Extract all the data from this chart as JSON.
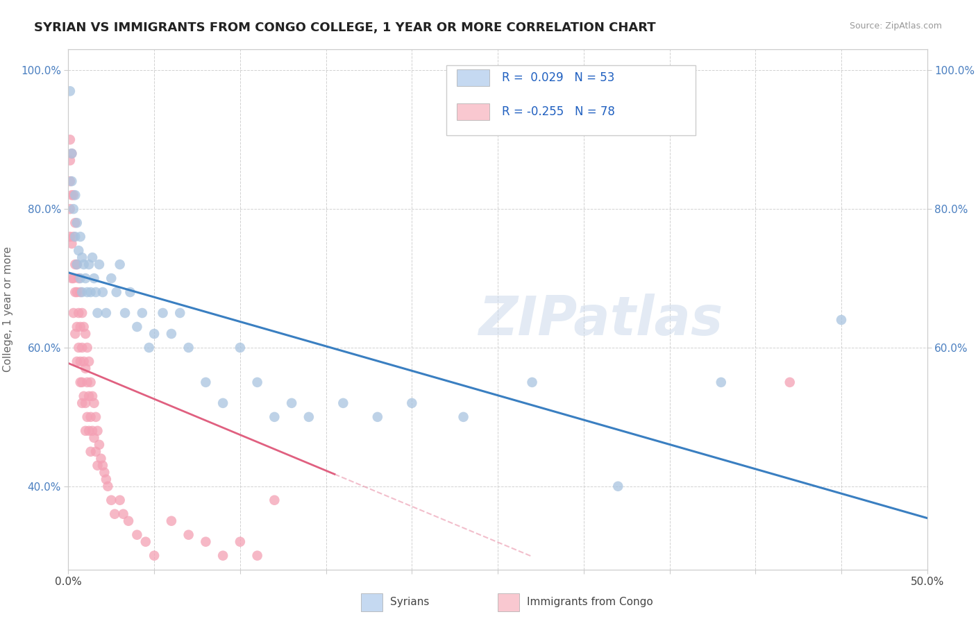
{
  "title": "SYRIAN VS IMMIGRANTS FROM CONGO COLLEGE, 1 YEAR OR MORE CORRELATION CHART",
  "source": "Source: ZipAtlas.com",
  "ylabel": "College, 1 year or more",
  "xmin": 0.0,
  "xmax": 0.5,
  "ymin": 0.28,
  "ymax": 1.03,
  "r_syrian": 0.029,
  "n_syrian": 53,
  "r_congo": -0.255,
  "n_congo": 78,
  "syrian_color": "#a8c4e0",
  "congo_color": "#f4a0b4",
  "syrian_line_color": "#3a7fc1",
  "congo_line_color": "#e06080",
  "legend_box_color_syrian": "#c5d9f1",
  "legend_box_color_congo": "#f9c8d0",
  "legend_text_color": "#2060c0",
  "watermark": "ZIPatlas",
  "background_color": "#ffffff",
  "grid_color": "#cccccc",
  "syrian_scatter_x": [
    0.001,
    0.002,
    0.002,
    0.003,
    0.004,
    0.004,
    0.005,
    0.005,
    0.006,
    0.007,
    0.007,
    0.008,
    0.008,
    0.009,
    0.01,
    0.011,
    0.012,
    0.013,
    0.014,
    0.015,
    0.016,
    0.017,
    0.018,
    0.02,
    0.022,
    0.025,
    0.028,
    0.03,
    0.033,
    0.036,
    0.04,
    0.043,
    0.047,
    0.05,
    0.055,
    0.06,
    0.065,
    0.07,
    0.08,
    0.09,
    0.1,
    0.11,
    0.12,
    0.13,
    0.14,
    0.16,
    0.18,
    0.2,
    0.23,
    0.27,
    0.32,
    0.38,
    0.45
  ],
  "syrian_scatter_y": [
    0.97,
    0.88,
    0.84,
    0.8,
    0.82,
    0.76,
    0.72,
    0.78,
    0.74,
    0.76,
    0.7,
    0.73,
    0.68,
    0.72,
    0.7,
    0.68,
    0.72,
    0.68,
    0.73,
    0.7,
    0.68,
    0.65,
    0.72,
    0.68,
    0.65,
    0.7,
    0.68,
    0.72,
    0.65,
    0.68,
    0.63,
    0.65,
    0.6,
    0.62,
    0.65,
    0.62,
    0.65,
    0.6,
    0.55,
    0.52,
    0.6,
    0.55,
    0.5,
    0.52,
    0.5,
    0.52,
    0.5,
    0.52,
    0.5,
    0.55,
    0.4,
    0.55,
    0.64
  ],
  "congo_scatter_x": [
    0.001,
    0.001,
    0.001,
    0.001,
    0.001,
    0.002,
    0.002,
    0.002,
    0.002,
    0.003,
    0.003,
    0.003,
    0.003,
    0.004,
    0.004,
    0.004,
    0.004,
    0.005,
    0.005,
    0.005,
    0.005,
    0.006,
    0.006,
    0.006,
    0.007,
    0.007,
    0.007,
    0.007,
    0.008,
    0.008,
    0.008,
    0.008,
    0.009,
    0.009,
    0.009,
    0.01,
    0.01,
    0.01,
    0.01,
    0.011,
    0.011,
    0.011,
    0.012,
    0.012,
    0.012,
    0.013,
    0.013,
    0.013,
    0.014,
    0.014,
    0.015,
    0.015,
    0.016,
    0.016,
    0.017,
    0.017,
    0.018,
    0.019,
    0.02,
    0.021,
    0.022,
    0.023,
    0.025,
    0.027,
    0.03,
    0.032,
    0.035,
    0.04,
    0.045,
    0.05,
    0.06,
    0.07,
    0.08,
    0.09,
    0.1,
    0.11,
    0.12,
    0.42
  ],
  "congo_scatter_y": [
    0.9,
    0.87,
    0.84,
    0.8,
    0.76,
    0.88,
    0.82,
    0.75,
    0.7,
    0.82,
    0.76,
    0.7,
    0.65,
    0.78,
    0.72,
    0.68,
    0.62,
    0.72,
    0.68,
    0.63,
    0.58,
    0.7,
    0.65,
    0.6,
    0.68,
    0.63,
    0.58,
    0.55,
    0.65,
    0.6,
    0.55,
    0.52,
    0.63,
    0.58,
    0.53,
    0.62,
    0.57,
    0.52,
    0.48,
    0.6,
    0.55,
    0.5,
    0.58,
    0.53,
    0.48,
    0.55,
    0.5,
    0.45,
    0.53,
    0.48,
    0.52,
    0.47,
    0.5,
    0.45,
    0.48,
    0.43,
    0.46,
    0.44,
    0.43,
    0.42,
    0.41,
    0.4,
    0.38,
    0.36,
    0.38,
    0.36,
    0.35,
    0.33,
    0.32,
    0.3,
    0.35,
    0.33,
    0.32,
    0.3,
    0.32,
    0.3,
    0.38,
    0.55
  ],
  "ytick_vals": [
    0.4,
    0.6,
    0.8,
    1.0
  ],
  "ytick_right_vals": [
    0.6,
    0.8,
    1.0
  ],
  "xtick_show": [
    0.0,
    0.5
  ]
}
